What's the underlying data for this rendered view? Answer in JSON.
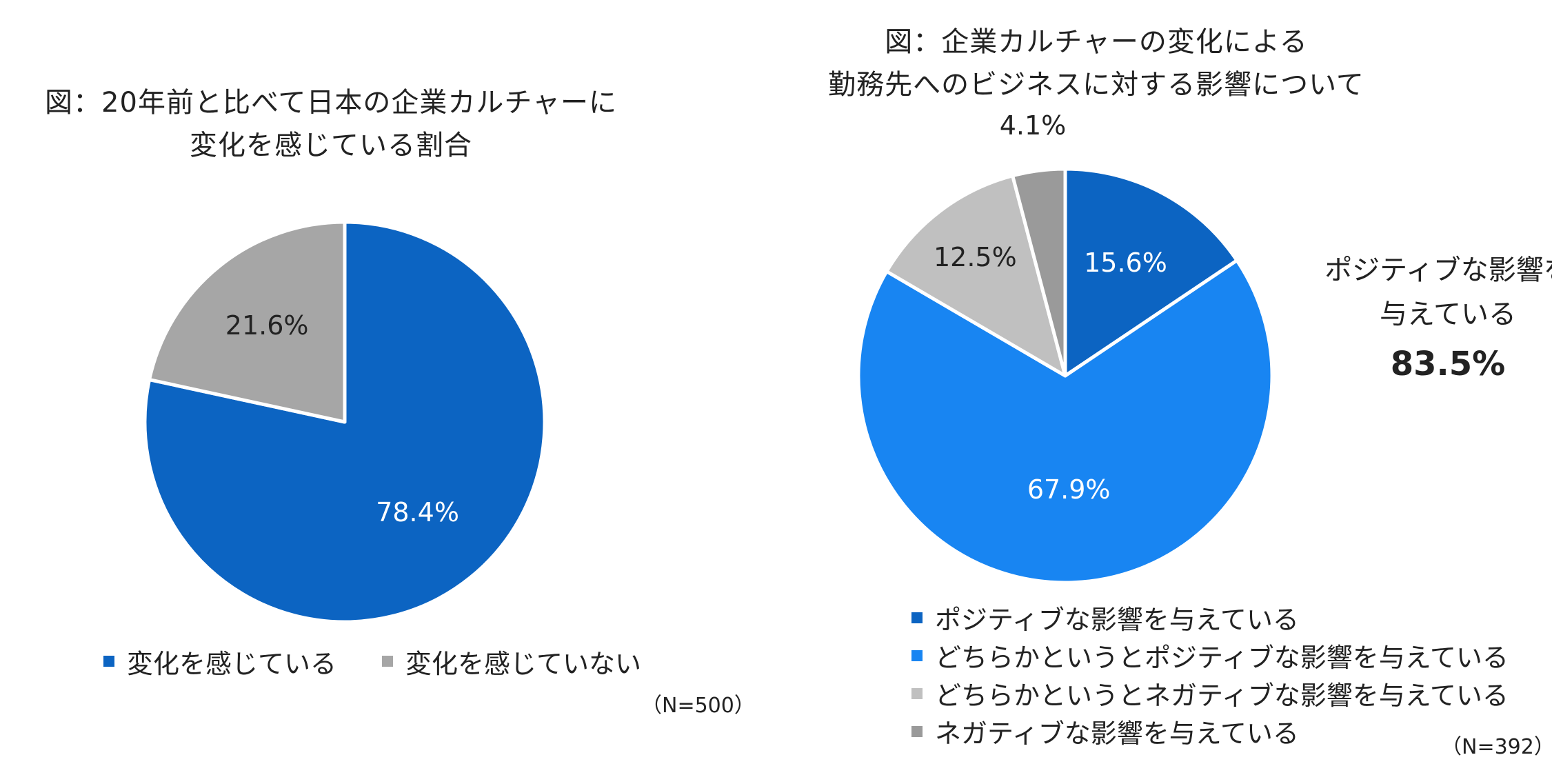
{
  "chart_data": [
    {
      "type": "pie",
      "title_lines": [
        "図：20年前と比べて日本の企業カルチャーに",
        "変化を感じている割合"
      ],
      "slices": [
        {
          "label": "変化を感じている",
          "value": 78.4,
          "label_text": "78.4%",
          "color": "#0c64c2",
          "label_color": "#ffffff"
        },
        {
          "label": "変化を感じていない",
          "value": 21.6,
          "label_text": "21.6%",
          "color": "#a6a6a6",
          "label_color": "#222222"
        }
      ],
      "legend_position": "bottom",
      "note": "（N=500）"
    },
    {
      "type": "pie",
      "title_lines": [
        "図：企業カルチャーの変化による",
        "勤務先へのビジネスに対する影響について"
      ],
      "slices": [
        {
          "label": "ポジティブな影響を与えている",
          "value": 15.6,
          "label_text": "15.6%",
          "color": "#0c64c2",
          "label_color": "#ffffff"
        },
        {
          "label": "どちらかというとポジティブな影響を与えている",
          "value": 67.9,
          "label_text": "67.9%",
          "color": "#1885f2",
          "label_color": "#ffffff"
        },
        {
          "label": "どちらかというとネガティブな影響を与えている",
          "value": 12.5,
          "label_text": "12.5%",
          "color": "#c0c0c0",
          "label_color": "#222222"
        },
        {
          "label": "ネガティブな影響を与えている",
          "value": 4.1,
          "label_text": "4.1%",
          "color": "#9a9a9a",
          "label_color": "#222222"
        }
      ],
      "callout": {
        "line1": "ポジティブな影響を",
        "line2": "与えている",
        "value_text": "83.5%"
      },
      "legend_position": "bottom",
      "note": "（N=392）"
    }
  ]
}
